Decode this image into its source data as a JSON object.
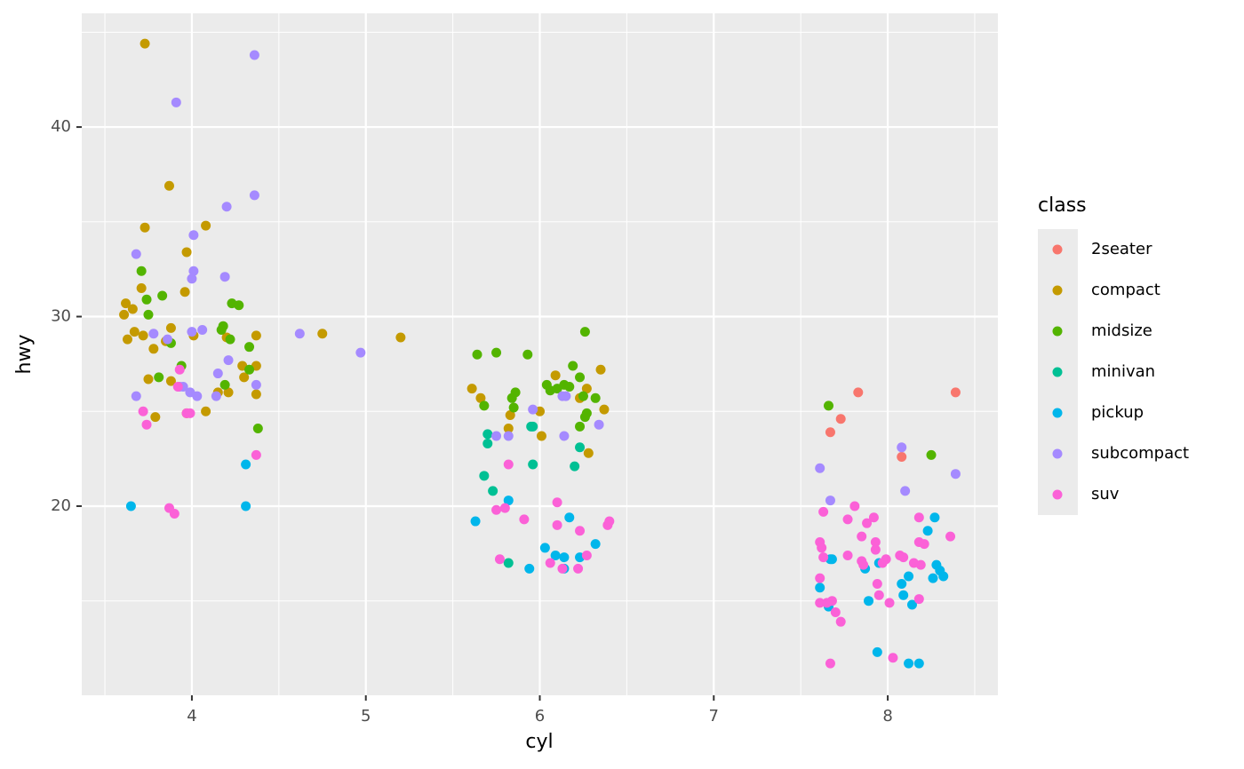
{
  "chart_data": {
    "type": "scatter",
    "x_label": "cyl",
    "y_label": "hwy",
    "legend_title": "class",
    "legend": "right",
    "grid": true,
    "xlim": [
      3.367,
      8.633
    ],
    "ylim": [
      10.02,
      46.0
    ],
    "xticks": [
      4,
      5,
      6,
      7,
      8
    ],
    "yticks": [
      20,
      30,
      40
    ],
    "minor_xticks": [
      3.5,
      4.5,
      5.5,
      6.5,
      7.5,
      8.5
    ],
    "minor_yticks": [
      15,
      25,
      35,
      45
    ],
    "series": [
      {
        "name": "2seater",
        "color": "#F8766D",
        "x": [
          7.73,
          7.67,
          7.83,
          8.08,
          8.39
        ],
        "y": [
          24.6,
          23.9,
          26.0,
          22.6,
          26.0
        ]
      },
      {
        "name": "compact",
        "color": "#C49A00",
        "x": [
          3.73,
          3.73,
          3.87,
          4.08,
          3.97,
          3.71,
          3.96,
          3.61,
          3.62,
          3.66,
          3.63,
          3.67,
          3.72,
          3.88,
          3.85,
          4.01,
          4.2,
          4.37,
          4.75,
          5.2,
          3.78,
          3.75,
          3.88,
          3.79,
          4.08,
          3.97,
          4.15,
          4.21,
          4.29,
          4.37,
          4.3,
          4.37,
          5.61,
          5.66,
          5.83,
          5.82,
          6.0,
          6.01,
          6.09,
          6.27,
          6.35,
          6.37,
          6.28,
          6.23
        ],
        "y": [
          44.4,
          34.7,
          36.9,
          34.8,
          33.4,
          31.5,
          31.3,
          30.1,
          30.7,
          30.4,
          28.8,
          29.2,
          29.0,
          29.4,
          28.7,
          29.0,
          28.9,
          29.0,
          29.1,
          28.9,
          28.3,
          26.7,
          26.6,
          24.7,
          25.0,
          24.9,
          26.0,
          26.0,
          27.4,
          27.4,
          26.8,
          25.9,
          26.2,
          25.7,
          24.8,
          24.1,
          25.0,
          23.7,
          26.9,
          26.2,
          27.2,
          25.1,
          22.8,
          25.7
        ]
      },
      {
        "name": "midsize",
        "color": "#53B400",
        "x": [
          3.71,
          3.74,
          3.75,
          3.83,
          3.88,
          3.94,
          3.81,
          4.17,
          4.18,
          4.22,
          4.23,
          4.27,
          4.19,
          4.33,
          4.33,
          4.38,
          5.64,
          5.75,
          5.93,
          5.68,
          5.86,
          5.84,
          5.85,
          6.04,
          6.06,
          6.1,
          6.14,
          6.17,
          6.19,
          6.23,
          6.26,
          6.25,
          6.32,
          6.27,
          6.26,
          6.23,
          7.66,
          8.25
        ],
        "y": [
          32.4,
          30.9,
          30.1,
          31.1,
          28.6,
          27.4,
          26.8,
          29.3,
          29.5,
          28.8,
          30.7,
          30.6,
          26.4,
          28.4,
          27.2,
          24.1,
          28.0,
          28.1,
          28.0,
          25.3,
          26.0,
          25.7,
          25.2,
          26.4,
          26.1,
          26.2,
          26.4,
          26.3,
          27.4,
          26.8,
          29.2,
          25.8,
          25.7,
          24.9,
          24.7,
          24.2,
          25.3,
          22.7
        ]
      },
      {
        "name": "minivan",
        "color": "#00C094",
        "x": [
          5.7,
          5.7,
          5.68,
          5.73,
          5.95,
          5.96,
          5.96,
          5.82,
          6.23,
          6.2
        ],
        "y": [
          23.8,
          23.3,
          21.6,
          20.8,
          24.2,
          24.2,
          22.2,
          17.0,
          23.1,
          22.1
        ]
      },
      {
        "name": "pickup",
        "color": "#00B6EB",
        "x": [
          3.65,
          4.31,
          4.31,
          5.82,
          5.63,
          6.03,
          6.09,
          6.14,
          6.17,
          6.23,
          6.32,
          5.94,
          6.14,
          7.67,
          7.68,
          7.61,
          7.66,
          7.87,
          7.89,
          7.94,
          8.12,
          8.18,
          7.95,
          8.08,
          8.09,
          8.12,
          8.14,
          8.23,
          8.27,
          8.28,
          8.3,
          8.26,
          8.32
        ],
        "y": [
          20.0,
          22.2,
          20.0,
          20.3,
          19.2,
          17.8,
          17.4,
          17.3,
          19.4,
          17.3,
          18.0,
          16.7,
          16.7,
          17.2,
          17.2,
          15.7,
          14.7,
          16.7,
          15.0,
          12.3,
          11.7,
          11.7,
          17.0,
          15.9,
          15.3,
          16.3,
          14.8,
          18.7,
          19.4,
          16.9,
          16.6,
          16.2,
          16.3
        ]
      },
      {
        "name": "subcompact",
        "color": "#A58AFF",
        "x": [
          4.36,
          3.91,
          4.36,
          4.2,
          4.01,
          3.68,
          4.01,
          4.0,
          4.19,
          3.78,
          3.86,
          4.0,
          4.06,
          4.21,
          4.15,
          3.95,
          3.93,
          3.99,
          4.03,
          4.14,
          3.68,
          4.37,
          4.62,
          4.97,
          5.96,
          5.75,
          5.82,
          6.13,
          6.15,
          6.14,
          6.34,
          7.61,
          7.67,
          8.08,
          8.1,
          8.39
        ],
        "y": [
          43.8,
          41.3,
          36.4,
          35.8,
          34.3,
          33.3,
          32.4,
          32.0,
          32.1,
          29.1,
          28.8,
          29.2,
          29.3,
          27.7,
          27.0,
          26.3,
          26.3,
          26.0,
          25.8,
          25.8,
          25.8,
          26.4,
          29.1,
          28.1,
          25.1,
          23.7,
          23.7,
          25.8,
          25.8,
          23.7,
          24.3,
          22.0,
          20.3,
          23.1,
          20.8,
          21.7
        ]
      },
      {
        "name": "suv",
        "color": "#FB61D7",
        "x": [
          3.72,
          3.74,
          3.93,
          3.92,
          3.97,
          3.99,
          3.87,
          3.9,
          4.37,
          5.82,
          5.75,
          5.8,
          5.91,
          5.77,
          6.1,
          6.1,
          6.23,
          6.39,
          6.4,
          6.27,
          6.06,
          6.13,
          6.22,
          7.63,
          7.61,
          7.62,
          7.63,
          7.61,
          7.61,
          7.65,
          7.68,
          7.7,
          7.73,
          7.67,
          7.81,
          7.77,
          7.88,
          7.92,
          7.85,
          7.93,
          7.93,
          7.77,
          7.85,
          7.86,
          7.97,
          7.99,
          7.94,
          7.95,
          8.01,
          8.03,
          8.07,
          8.09,
          8.15,
          8.19,
          8.18,
          8.18,
          8.21,
          8.18,
          8.36
        ],
        "y": [
          25.0,
          24.3,
          27.2,
          26.3,
          24.9,
          24.9,
          19.9,
          19.6,
          22.7,
          22.2,
          19.8,
          19.9,
          19.3,
          17.2,
          20.2,
          19.0,
          18.7,
          19.0,
          19.2,
          17.4,
          17.0,
          16.7,
          16.7,
          19.7,
          18.1,
          17.8,
          17.3,
          16.2,
          14.9,
          14.9,
          15.0,
          14.4,
          13.9,
          11.7,
          20.0,
          19.3,
          19.1,
          19.4,
          18.4,
          18.1,
          17.7,
          17.4,
          17.1,
          16.9,
          17.0,
          17.2,
          15.9,
          15.3,
          14.9,
          12.0,
          17.4,
          17.3,
          17.0,
          16.9,
          19.4,
          18.1,
          18.0,
          15.1,
          18.4
        ]
      }
    ]
  }
}
